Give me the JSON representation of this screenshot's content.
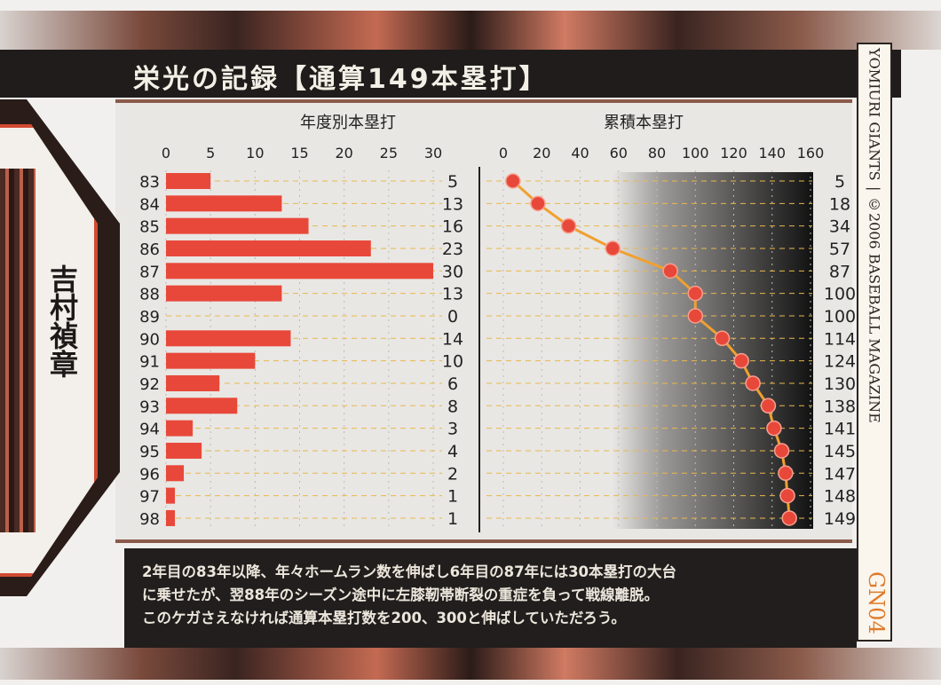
{
  "title": "栄光の記録【通算149本塁打】",
  "player_name": "吉村禎章",
  "side": {
    "copyright": "©2006 BASEBALL MAGAZINE",
    "team": "YOMIURI GIANTS",
    "card_number": "GN04"
  },
  "description": [
    "2年目の83年以降、年々ホームラン数を伸ばし6年目の87年には30本塁打の大台",
    "に乗せたが、翌88年のシーズン途中に左膝靭帯断裂の重症を負って戦線離脱。",
    "このケガさえなければ通算本塁打数を200、300と伸ばしていただろう。"
  ],
  "colors": {
    "bar": "#e8483a",
    "line": "#f0a030",
    "dot": "#e8483a"
  },
  "chart_data": [
    {
      "type": "bar",
      "title": "年度別本塁打",
      "orientation": "horizontal",
      "categories": [
        "83",
        "84",
        "85",
        "86",
        "87",
        "88",
        "89",
        "90",
        "91",
        "92",
        "93",
        "94",
        "95",
        "96",
        "97",
        "98"
      ],
      "values": [
        5,
        13,
        16,
        23,
        30,
        13,
        0,
        14,
        10,
        6,
        8,
        3,
        4,
        2,
        1,
        1
      ],
      "xticks": [
        0,
        5,
        10,
        15,
        20,
        25,
        30
      ],
      "xlim": [
        0,
        30
      ],
      "grid": true
    },
    {
      "type": "line",
      "title": "累積本塁打",
      "categories": [
        "83",
        "84",
        "85",
        "86",
        "87",
        "88",
        "89",
        "90",
        "91",
        "92",
        "93",
        "94",
        "95",
        "96",
        "97",
        "98"
      ],
      "values": [
        5,
        18,
        34,
        57,
        87,
        100,
        100,
        114,
        124,
        130,
        138,
        141,
        145,
        147,
        148,
        149
      ],
      "xticks": [
        0,
        20,
        40,
        60,
        80,
        100,
        120,
        140,
        160
      ],
      "xlim": [
        0,
        160
      ],
      "grid": true
    }
  ]
}
